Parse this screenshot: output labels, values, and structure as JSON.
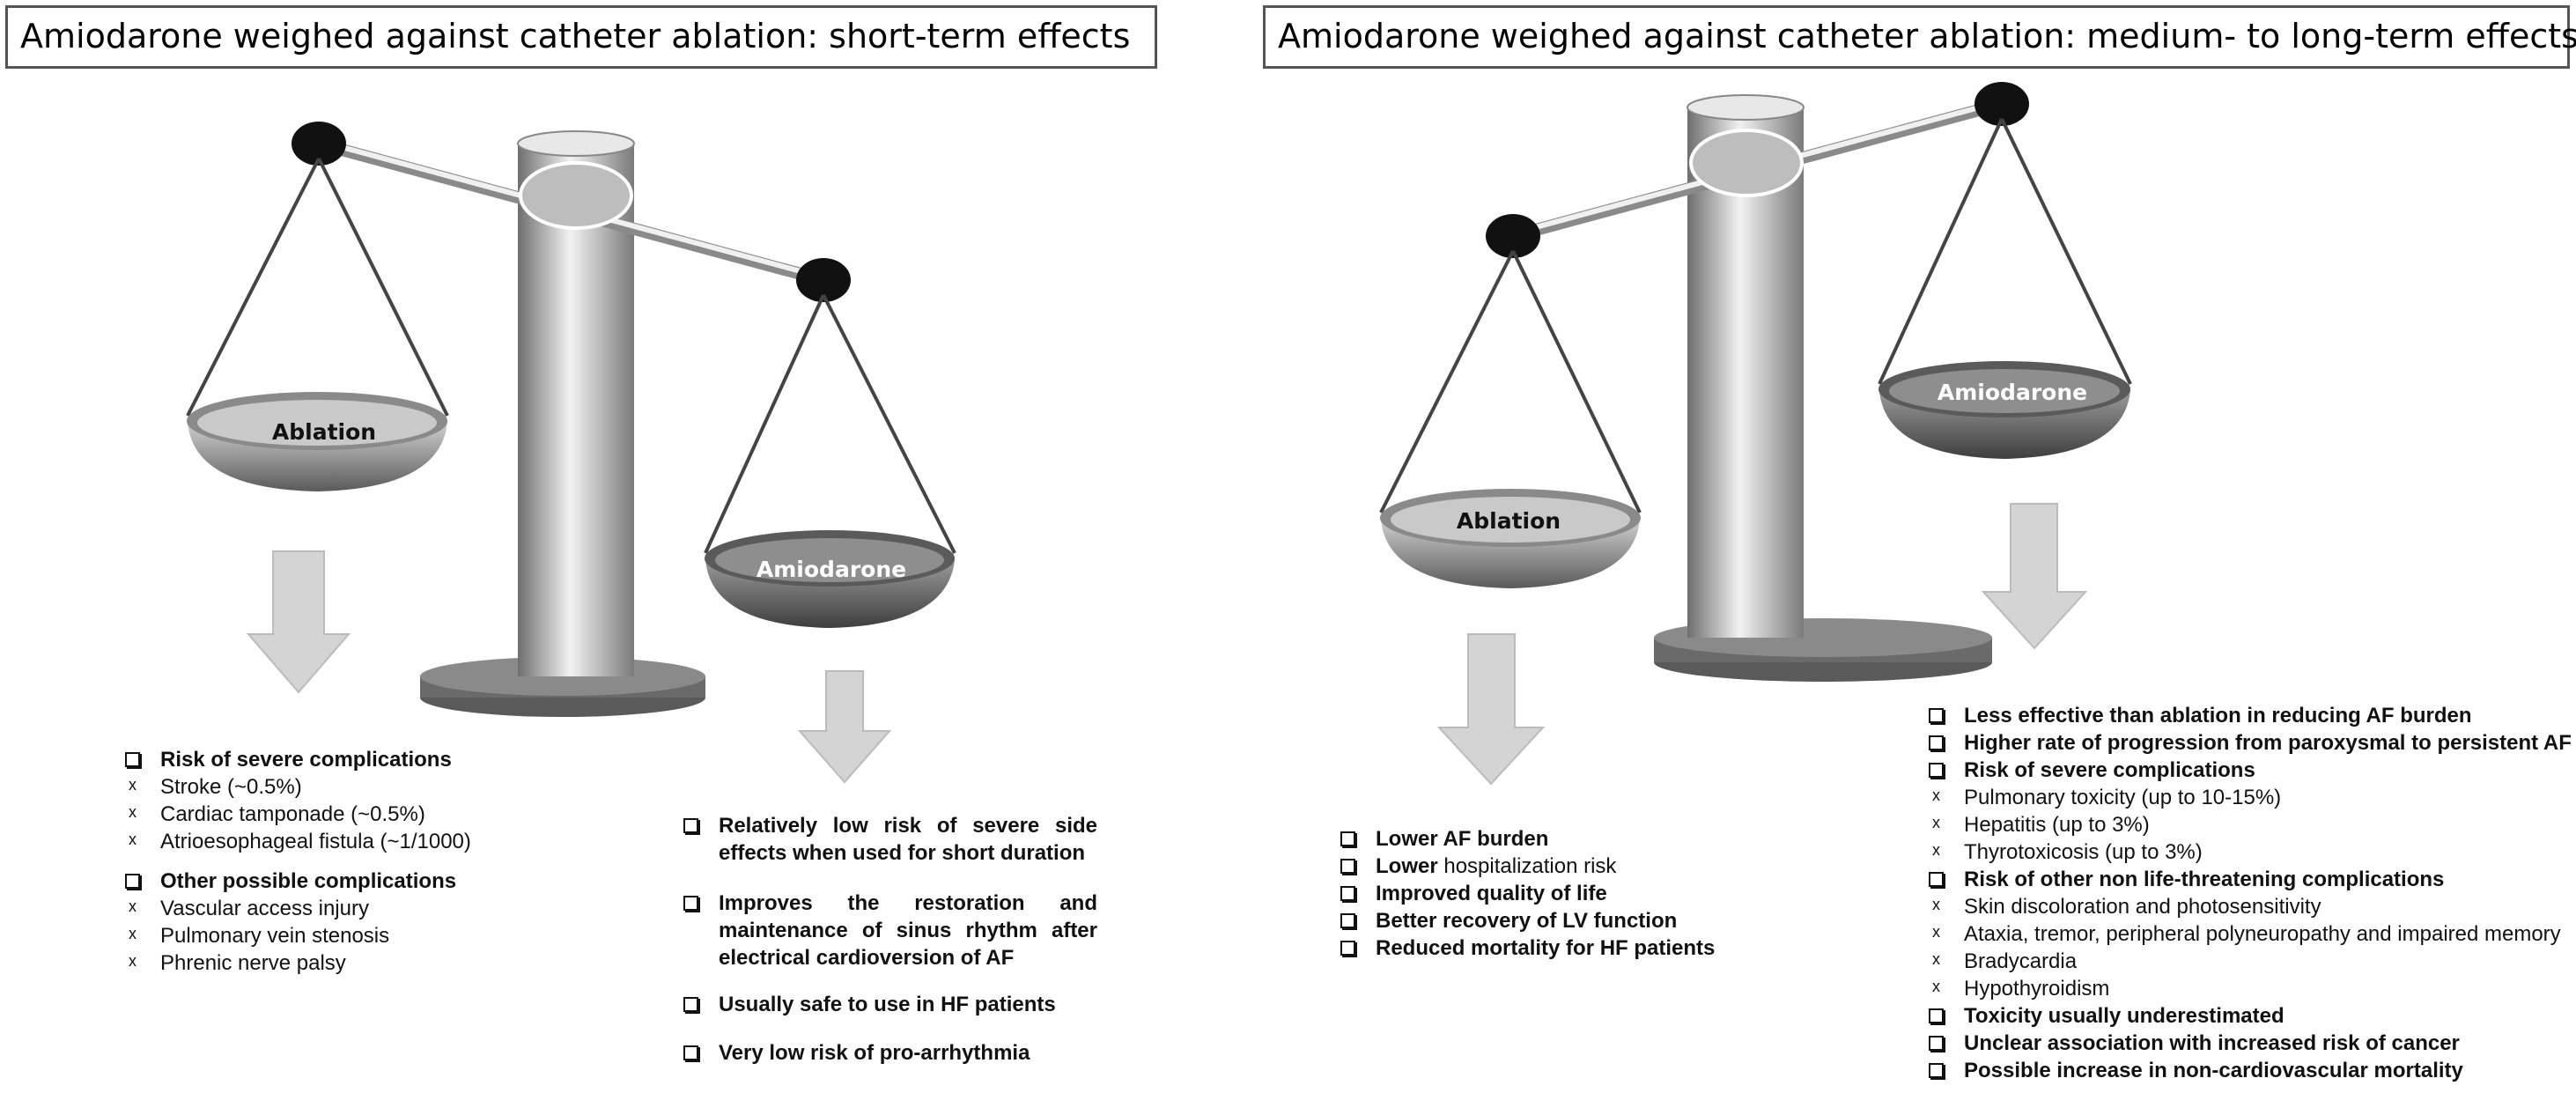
{
  "panels": [
    {
      "title": "Amiodarone weighed against catheter ablation:  short-term effects",
      "left_pan_label": "Ablation",
      "right_pan_label": "Amiodarone",
      "left_list": [
        {
          "kind": "main",
          "text": "Risk of severe complications"
        },
        {
          "kind": "sub",
          "text": "Stroke (~0.5%)"
        },
        {
          "kind": "sub",
          "text": "Cardiac tamponade (~0.5%)"
        },
        {
          "kind": "sub",
          "text": "Atrioesophageal fistula (~1/1000)"
        },
        {
          "kind": "main",
          "text": "Other possible complications"
        },
        {
          "kind": "sub",
          "text": "Vascular access injury"
        },
        {
          "kind": "sub",
          "text": "Pulmonary vein stenosis"
        },
        {
          "kind": "sub",
          "text": "Phrenic nerve palsy"
        }
      ],
      "right_list": [
        "Relatively low risk of severe side effects when used for short duration",
        "Improves the restoration and maintenance of sinus rhythm after electrical cardioversion of AF",
        "Usually safe to use in HF patients",
        "Very low risk of pro-arrhythmia"
      ]
    },
    {
      "title": "Amiodarone weighed against catheter ablation: medium- to long-term effects",
      "left_pan_label": "Ablation",
      "right_pan_label": "Amiodarone",
      "left_list": [
        {
          "text": "Lower AF burden"
        },
        {
          "text": "Lower ",
          "extra": "hospitalization risk"
        },
        {
          "text": "Improved quality of life"
        },
        {
          "text": "Better recovery of LV function"
        },
        {
          "text": "Reduced mortality for HF patients"
        }
      ],
      "right_list": [
        {
          "kind": "main",
          "text": "Less effective than ablation in reducing AF burden"
        },
        {
          "kind": "main",
          "text": "Higher rate of progression from paroxysmal to persistent AF"
        },
        {
          "kind": "main",
          "text": "Risk of severe complications"
        },
        {
          "kind": "sub",
          "text": "Pulmonary toxicity (up to 10-15%)"
        },
        {
          "kind": "sub",
          "text": "Hepatitis (up to 3%)"
        },
        {
          "kind": "sub",
          "text": "Thyrotoxicosis (up to 3%)"
        },
        {
          "kind": "main",
          "text": "Risk of other non life-threatening complications"
        },
        {
          "kind": "sub",
          "text": "Skin discoloration and photosensitivity"
        },
        {
          "kind": "sub",
          "text": "Ataxia, tremor, peripheral polyneuropathy and impaired memory"
        },
        {
          "kind": "sub",
          "text": "Bradycardia"
        },
        {
          "kind": "sub",
          "text": "Hypothyroidism"
        },
        {
          "kind": "main",
          "text": "Toxicity usually underestimated"
        },
        {
          "kind": "main",
          "text": "Unclear association with increased risk of cancer"
        },
        {
          "kind": "main",
          "text": "Possible increase in non-cardiovascular mortality"
        }
      ]
    }
  ],
  "colors": {
    "arrow": "#d4d4d4",
    "pillar_mid": "#e6e6e6",
    "pillar_dark": "#7a7a7a",
    "base": "#5f5f5f",
    "knob": "#111111"
  }
}
